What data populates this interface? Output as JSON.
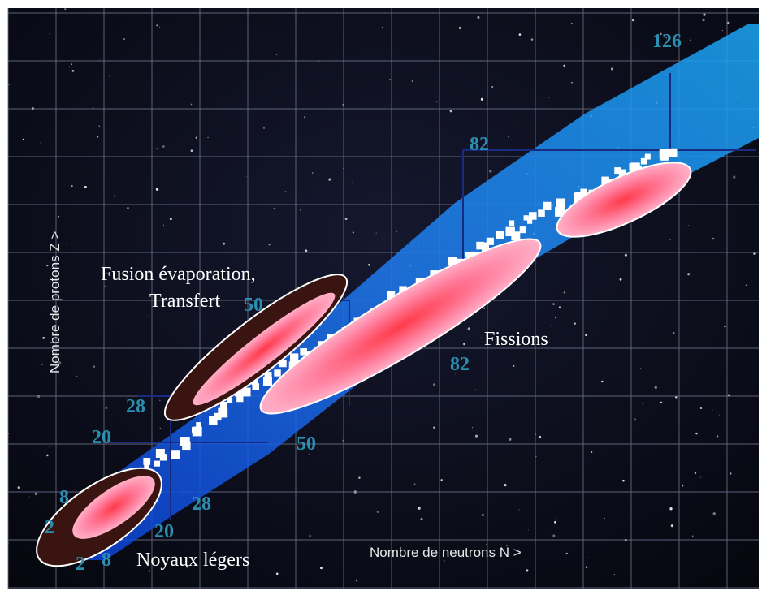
{
  "axes": {
    "x_label": "Nombre de neutrons N  >",
    "y_label": "Nombre de protons Z  >"
  },
  "regions": {
    "fusion": [
      "Fusion évaporation,",
      "Transfert"
    ],
    "fission": "Fissions",
    "light": "Noyaux légers"
  },
  "magic_numbers": {
    "neutrons": [
      "2",
      "8",
      "20",
      "28",
      "50",
      "82",
      "126"
    ],
    "protons": [
      "2",
      "8",
      "20",
      "28",
      "50",
      "82"
    ]
  }
}
